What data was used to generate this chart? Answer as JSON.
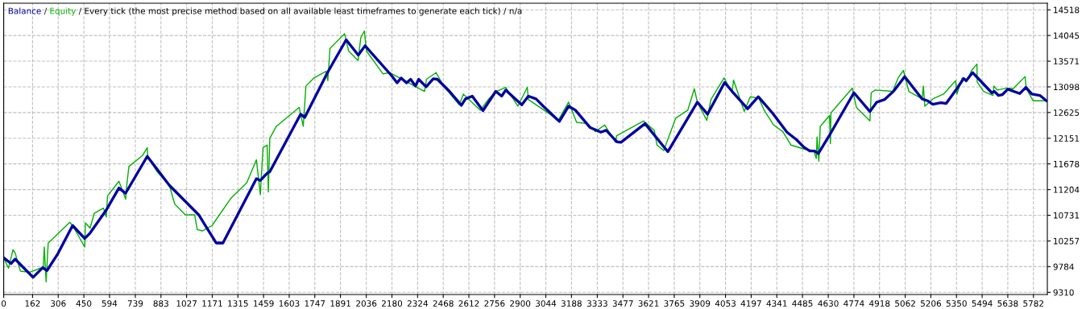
{
  "chart_data": {
    "type": "line",
    "title": "/ Every tick (the most precise method based on all available least timeframes to generate each tick) / n/a",
    "legend": false,
    "grid": true,
    "marker": "none",
    "annotations": [
      "/"
    ],
    "xlim": [
      0,
      5860
    ],
    "xticks": [
      0,
      162,
      306,
      450,
      594,
      739,
      883,
      1027,
      1171,
      1315,
      1459,
      1603,
      1747,
      1891,
      2036,
      2180,
      2324,
      2468,
      2612,
      2756,
      2900,
      3044,
      3188,
      3333,
      3477,
      3621,
      3765,
      3909,
      4053,
      4197,
      4341,
      4485,
      4630,
      4774,
      4918,
      5062,
      5206,
      5350,
      5494,
      5638,
      5782
    ],
    "ylim": [
      9270,
      14640
    ],
    "yticks": [
      9310,
      9784,
      10257,
      10731,
      11204,
      11678,
      12151,
      12625,
      13098,
      13571,
      14045,
      14518
    ],
    "series": [
      {
        "name": "Balance",
        "color": "#0000a0",
        "x": [
          0,
          41,
          64,
          165,
          219,
          243,
          304,
          387,
          455,
          485,
          576,
          647,
          684,
          806,
          930,
          1050,
          1095,
          1193,
          1231,
          1419,
          1441,
          1479,
          1494,
          1667,
          1690,
          1818,
          1923,
          1991,
          2029,
          2179,
          2209,
          2232,
          2262,
          2285,
          2312,
          2330,
          2372,
          2412,
          2435,
          2503,
          2570,
          2593,
          2631,
          2691,
          2763,
          2796,
          2819,
          2909,
          2946,
          2989,
          3030,
          3120,
          3172,
          3210,
          3293,
          3353,
          3383,
          3443,
          3466,
          3601,
          3729,
          3850,
          3895,
          3952,
          4048,
          4090,
          4177,
          4237,
          4316,
          4398,
          4451,
          4493,
          4526,
          4553,
          4574,
          4631,
          4774,
          4864,
          4902,
          4947,
          4999,
          5059,
          5157,
          5187,
          5217,
          5262,
          5292,
          5352,
          5390,
          5405,
          5440,
          5458,
          5548,
          5563,
          5585,
          5608,
          5638,
          5705,
          5740,
          5773,
          5818,
          5855
        ],
        "values": [
          9948,
          9840,
          9923,
          9588,
          9766,
          9711,
          10022,
          10542,
          10304,
          10404,
          10828,
          11234,
          11135,
          11818,
          11284,
          10887,
          10739,
          10220,
          10220,
          11406,
          11373,
          11506,
          11531,
          12594,
          12535,
          13361,
          13965,
          13683,
          13856,
          13301,
          13173,
          13262,
          13173,
          13238,
          13114,
          13238,
          13100,
          13248,
          13238,
          13015,
          12757,
          12876,
          12926,
          12659,
          13015,
          12926,
          13039,
          12767,
          12926,
          12876,
          12742,
          12461,
          12742,
          12668,
          12347,
          12263,
          12297,
          12085,
          12075,
          12421,
          11902,
          12570,
          12816,
          12594,
          13180,
          13015,
          12694,
          12916,
          12619,
          12263,
          12125,
          11986,
          11917,
          11917,
          11867,
          12174,
          12990,
          12644,
          12816,
          12866,
          13025,
          13287,
          12876,
          12842,
          12777,
          12806,
          12792,
          13064,
          13252,
          13213,
          13361,
          13301,
          12990,
          13015,
          12941,
          12956,
          13054,
          12975,
          13089,
          12965,
          12941,
          12842
        ]
      },
      {
        "name": "Equity",
        "color": "#00b000",
        "x": [
          0,
          27,
          52,
          64,
          94,
          145,
          222,
          228,
          238,
          250,
          371,
          387,
          455,
          459,
          485,
          508,
          560,
          576,
          583,
          647,
          685,
          691,
          703,
          778,
          806,
          809,
          862,
          930,
          960,
          1020,
          1072,
          1087,
          1117,
          1170,
          1275,
          1365,
          1419,
          1441,
          1456,
          1479,
          1486,
          1494,
          1531,
          1659,
          1682,
          1697,
          1742,
          1810,
          1820,
          1832,
          1914,
          1937,
          1990,
          2005,
          2025,
          2037,
          2130,
          2167,
          2363,
          2374,
          2428,
          2468,
          2558,
          2581,
          2676,
          2721,
          2766,
          2819,
          2887,
          2940,
          2946,
          3067,
          3112,
          3172,
          3217,
          3277,
          3322,
          3375,
          3435,
          3442,
          3593,
          3653,
          3668,
          3706,
          3773,
          3841,
          3878,
          3895,
          3948,
          3971,
          4045,
          4090,
          4098,
          4158,
          4192,
          4240,
          4270,
          4323,
          4375,
          4420,
          4495,
          4548,
          4563,
          4567,
          4577,
          4585,
          4637,
          4642,
          4645,
          4765,
          4788,
          4864,
          4871,
          4894,
          4992,
          5022,
          5052,
          5082,
          5157,
          5164,
          5172,
          5217,
          5277,
          5345,
          5352,
          5382,
          5405,
          5435,
          5465,
          5466,
          5502,
          5555,
          5560,
          5578,
          5630,
          5668,
          5735,
          5742,
          5780,
          5855
        ],
        "values": [
          9940,
          9755,
          10096,
          10040,
          9700,
          9681,
          9774,
          10145,
          9503,
          10220,
          10601,
          10542,
          10145,
          10591,
          10493,
          10765,
          10863,
          10700,
          11086,
          11358,
          11027,
          11284,
          11630,
          11828,
          11976,
          11803,
          11531,
          11284,
          10938,
          10739,
          10739,
          10467,
          10442,
          10542,
          11041,
          11333,
          11754,
          11110,
          11976,
          12026,
          11160,
          12149,
          12371,
          12718,
          12371,
          13114,
          13262,
          13386,
          13213,
          13806,
          14078,
          13757,
          13584,
          14004,
          14128,
          13757,
          13336,
          13361,
          13015,
          13238,
          13361,
          13124,
          12767,
          12965,
          12668,
          12866,
          13015,
          13089,
          12742,
          13089,
          12866,
          12594,
          12470,
          12816,
          12445,
          12421,
          12272,
          12396,
          12075,
          12199,
          12470,
          12297,
          12026,
          11926,
          12520,
          12668,
          13064,
          12816,
          12480,
          12866,
          13262,
          12990,
          13223,
          12644,
          12916,
          12891,
          12668,
          12396,
          12272,
          12026,
          11951,
          11926,
          11778,
          12174,
          11729,
          12371,
          12570,
          12050,
          12619,
          13074,
          12718,
          12470,
          12990,
          13039,
          13015,
          13262,
          13401,
          13015,
          12876,
          13114,
          12742,
          12876,
          12965,
          13213,
          12965,
          13262,
          13188,
          13401,
          13518,
          13188,
          13015,
          12941,
          13114,
          13039,
          13074,
          13064,
          13287,
          13064,
          12842,
          12842
        ]
      }
    ]
  }
}
